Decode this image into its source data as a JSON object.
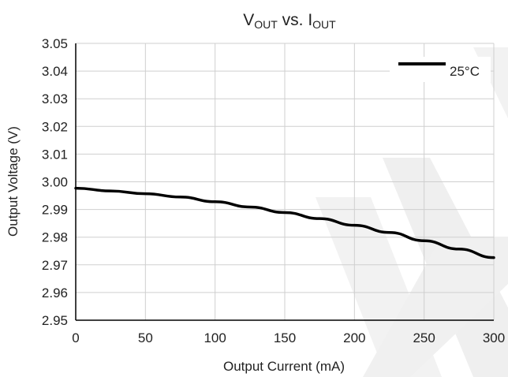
{
  "chart_data": {
    "type": "line",
    "title": {
      "main": "V",
      "sub1": "OUT",
      "mid": " vs. I",
      "sub2": "OUT"
    },
    "xlabel": "Output Current (mA)",
    "ylabel": "Output Voltage (V)",
    "xlim": [
      0,
      300
    ],
    "ylim": [
      2.95,
      3.05
    ],
    "x_ticks": [
      0,
      50,
      100,
      150,
      200,
      250,
      300
    ],
    "y_ticks": [
      2.95,
      2.96,
      2.97,
      2.98,
      2.99,
      3.0,
      3.01,
      3.02,
      3.03,
      3.04,
      3.05
    ],
    "x_tick_labels": [
      "0",
      "50",
      "100",
      "150",
      "200",
      "250",
      "300"
    ],
    "y_tick_labels": [
      "2.95",
      "2.96",
      "2.97",
      "2.98",
      "2.99",
      "3.00",
      "3.01",
      "3.02",
      "3.03",
      "3.04",
      "3.05"
    ],
    "grid": true,
    "legend_position": "top-right",
    "series": [
      {
        "name": "25°C",
        "color": "#000000",
        "x": [
          0,
          25,
          50,
          75,
          100,
          125,
          150,
          175,
          200,
          225,
          250,
          275,
          300
        ],
        "y": [
          2.9977,
          2.9967,
          2.9957,
          2.9945,
          2.9928,
          2.9909,
          2.9889,
          2.9867,
          2.9843,
          2.9817,
          2.9787,
          2.9757,
          2.9726
        ]
      }
    ],
    "colors": {
      "grid": "#cfcfcf",
      "axis": "#000000",
      "watermark": "#ededed"
    }
  }
}
